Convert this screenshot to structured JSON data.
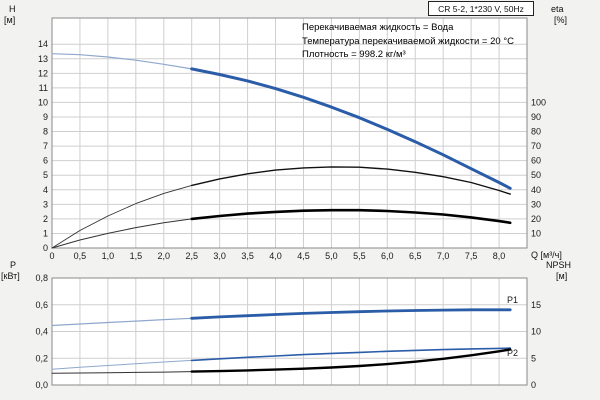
{
  "header": {
    "pump_model_box": "CR 5-2, 1*230 V, 50Hz"
  },
  "annotations": {
    "line1": "Перекачиваемая жидкость = Вода",
    "line2": "Температура перекачиваемой жидкости = 20 °C",
    "line3": "Плотность = 998.2 кг/м³"
  },
  "axes": {
    "top_left_label": "H",
    "top_left_unit": "[м]",
    "top_right_label": "eta",
    "top_right_unit": "[%]",
    "bottom_left_label": "P",
    "bottom_left_unit": "[кВт]",
    "bottom_right_label": "NPSH",
    "bottom_right_unit": "[м]",
    "x_axis_label": "Q [м³/ч]"
  },
  "chart_data": [
    {
      "type": "line",
      "name": "head-efficiency-chart",
      "title": "CR 5-2, 1*230 V, 50Hz",
      "xlabel": "Q [м³/ч]",
      "ylabel_left": "H [м]",
      "ylabel_right": "eta [%]",
      "xlim": [
        0,
        8.5
      ],
      "ylim_left": [
        0,
        15.8
      ],
      "grid": true,
      "x_ticks": [
        0,
        0.5,
        1,
        1.5,
        2,
        2.5,
        3,
        3.5,
        4,
        4.5,
        5,
        5.5,
        6,
        6.5,
        7,
        7.5,
        8
      ],
      "x_tick_labels": [
        "0",
        "0,5",
        "1,0",
        "1,5",
        "2,0",
        "2,5",
        "3,0",
        "3,5",
        "4,0",
        "4,5",
        "5,0",
        "5,5",
        "6,0",
        "6,5",
        "7,0",
        "7,5",
        "8,0"
      ],
      "y_grid": [
        1,
        2,
        3,
        4,
        5,
        6,
        7,
        8,
        9,
        10,
        11,
        12,
        13,
        14
      ],
      "y_ticks_left": [
        0,
        1,
        2,
        3,
        4,
        5,
        6,
        7,
        8,
        9,
        10,
        11,
        12,
        13,
        14
      ],
      "y_tick_labels_left": [
        "0",
        "1",
        "2",
        "3",
        "4",
        "5",
        "6",
        "7",
        "8",
        "9",
        "10",
        "11",
        "12",
        "13",
        "14"
      ],
      "y_ticks_right": [
        10,
        20,
        30,
        40,
        50,
        60,
        70,
        80,
        90,
        100
      ],
      "y_tick_labels_right": [
        "10",
        "20",
        "30",
        "40",
        "50",
        "60",
        "70",
        "80",
        "90",
        "100"
      ],
      "series": [
        {
          "name": "H",
          "axis": "left",
          "color": "#2a5ca8",
          "thin_color": "#8ea8cd",
          "split_q": 2.5,
          "width_thin": 1.2,
          "width_thick": 3,
          "points": [
            [
              0,
              13.35
            ],
            [
              0.5,
              13.28
            ],
            [
              1,
              13.12
            ],
            [
              1.5,
              12.9
            ],
            [
              2,
              12.62
            ],
            [
              2.5,
              12.3
            ],
            [
              3,
              11.92
            ],
            [
              3.5,
              11.48
            ],
            [
              4,
              10.95
            ],
            [
              4.5,
              10.35
            ],
            [
              5,
              9.68
            ],
            [
              5.5,
              8.95
            ],
            [
              6,
              8.15
            ],
            [
              6.5,
              7.3
            ],
            [
              7,
              6.4
            ],
            [
              7.5,
              5.45
            ],
            [
              8,
              4.5
            ],
            [
              8.2,
              4.1
            ]
          ]
        },
        {
          "name": "eta-pump",
          "axis": "right",
          "color": "#111111",
          "thin_color": "#333333",
          "split_q": 2.5,
          "width_thin": 0.9,
          "width_thick": 1.4,
          "points": [
            [
              0,
              0
            ],
            [
              0.5,
              12
            ],
            [
              1,
              22
            ],
            [
              1.5,
              30.5
            ],
            [
              2,
              37.5
            ],
            [
              2.5,
              43
            ],
            [
              3,
              47.5
            ],
            [
              3.5,
              51
            ],
            [
              4,
              53.5
            ],
            [
              4.5,
              55
            ],
            [
              5,
              55.7
            ],
            [
              5.5,
              55.5
            ],
            [
              6,
              54.2
            ],
            [
              6.5,
              52
            ],
            [
              7,
              49
            ],
            [
              7.5,
              45
            ],
            [
              8,
              39.5
            ],
            [
              8.2,
              37
            ]
          ]
        },
        {
          "name": "eta-pump-motor",
          "axis": "right",
          "color": "#000000",
          "thin_color": "#333333",
          "split_q": 2.5,
          "width_thin": 1,
          "width_thick": 2.6,
          "points": [
            [
              0,
              0
            ],
            [
              0.5,
              5.5
            ],
            [
              1,
              10
            ],
            [
              1.5,
              14
            ],
            [
              2,
              17.3
            ],
            [
              2.5,
              20
            ],
            [
              3,
              22
            ],
            [
              3.5,
              23.6
            ],
            [
              4,
              24.8
            ],
            [
              4.5,
              25.6
            ],
            [
              5,
              26
            ],
            [
              5.5,
              26
            ],
            [
              6,
              25.4
            ],
            [
              6.5,
              24.4
            ],
            [
              7,
              23
            ],
            [
              7.5,
              21
            ],
            [
              8,
              18.5
            ],
            [
              8.2,
              17.3
            ]
          ]
        }
      ]
    },
    {
      "type": "line",
      "name": "power-npsh-chart",
      "xlabel": "Q [м³/ч]",
      "ylabel_left": "P [кВт]",
      "ylabel_right": "NPSH [м]",
      "xlim": [
        0,
        8.5
      ],
      "ylim_left": [
        0,
        0.8
      ],
      "grid": true,
      "x_ticks": [
        0,
        0.5,
        1,
        1.5,
        2,
        2.5,
        3,
        3.5,
        4,
        4.5,
        5,
        5.5,
        6,
        6.5,
        7,
        7.5,
        8
      ],
      "x_tick_labels": [],
      "y_grid": [
        0.2,
        0.4,
        0.6
      ],
      "y_ticks_left": [
        0,
        0.2,
        0.4,
        0.6,
        0.8
      ],
      "y_tick_labels_left": [
        "0,0",
        "0,2",
        "0,4",
        "0,6",
        "0,8"
      ],
      "y_ticks_right": [
        0,
        5,
        10,
        15
      ],
      "y_tick_labels_right": [
        "0",
        "5",
        "10",
        "15"
      ],
      "series": [
        {
          "name": "P1",
          "label": "P1",
          "label_dy": -7,
          "axis": "left",
          "color": "#2a5ca8",
          "thin_color": "#8ea8cd",
          "split_q": 2.5,
          "width_thin": 1.2,
          "width_thick": 2.8,
          "points": [
            [
              0,
              0.445
            ],
            [
              0.5,
              0.456
            ],
            [
              1,
              0.467
            ],
            [
              1.5,
              0.478
            ],
            [
              2,
              0.489
            ],
            [
              2.5,
              0.499
            ],
            [
              3,
              0.509
            ],
            [
              3.5,
              0.518
            ],
            [
              4,
              0.527
            ],
            [
              4.5,
              0.535
            ],
            [
              5,
              0.542
            ],
            [
              5.5,
              0.548
            ],
            [
              6,
              0.553
            ],
            [
              6.5,
              0.557
            ],
            [
              7,
              0.56
            ],
            [
              7.5,
              0.562
            ],
            [
              8,
              0.562
            ],
            [
              8.2,
              0.562
            ]
          ]
        },
        {
          "name": "P2",
          "label": "P2",
          "label_dy": 8,
          "axis": "left",
          "color": "#2a5ca8",
          "thin_color": "#8ea8cd",
          "split_q": 2.5,
          "width_thin": 1,
          "width_thick": 1.6,
          "points": [
            [
              0,
              0.118
            ],
            [
              0.5,
              0.132
            ],
            [
              1,
              0.146
            ],
            [
              1.5,
              0.159
            ],
            [
              2,
              0.172
            ],
            [
              2.5,
              0.184
            ],
            [
              3,
              0.196
            ],
            [
              3.5,
              0.207
            ],
            [
              4,
              0.217
            ],
            [
              4.5,
              0.227
            ],
            [
              5,
              0.236
            ],
            [
              5.5,
              0.244
            ],
            [
              6,
              0.252
            ],
            [
              6.5,
              0.259
            ],
            [
              7,
              0.265
            ],
            [
              7.5,
              0.27
            ],
            [
              8,
              0.274
            ],
            [
              8.2,
              0.276
            ]
          ]
        },
        {
          "name": "NPSH",
          "axis": "right",
          "color": "#000000",
          "thin_color": "#333333",
          "split_q": 2.5,
          "width_thin": 1,
          "width_thick": 2.4,
          "points": [
            [
              0,
              2.2
            ],
            [
              0.5,
              2.25
            ],
            [
              1,
              2.3
            ],
            [
              1.5,
              2.35
            ],
            [
              2,
              2.42
            ],
            [
              2.5,
              2.5
            ],
            [
              3,
              2.6
            ],
            [
              3.5,
              2.72
            ],
            [
              4,
              2.87
            ],
            [
              4.5,
              3.05
            ],
            [
              5,
              3.28
            ],
            [
              5.5,
              3.55
            ],
            [
              6,
              3.9
            ],
            [
              6.5,
              4.35
            ],
            [
              7,
              4.9
            ],
            [
              7.5,
              5.55
            ],
            [
              8,
              6.3
            ],
            [
              8.2,
              6.65
            ]
          ]
        }
      ]
    }
  ]
}
